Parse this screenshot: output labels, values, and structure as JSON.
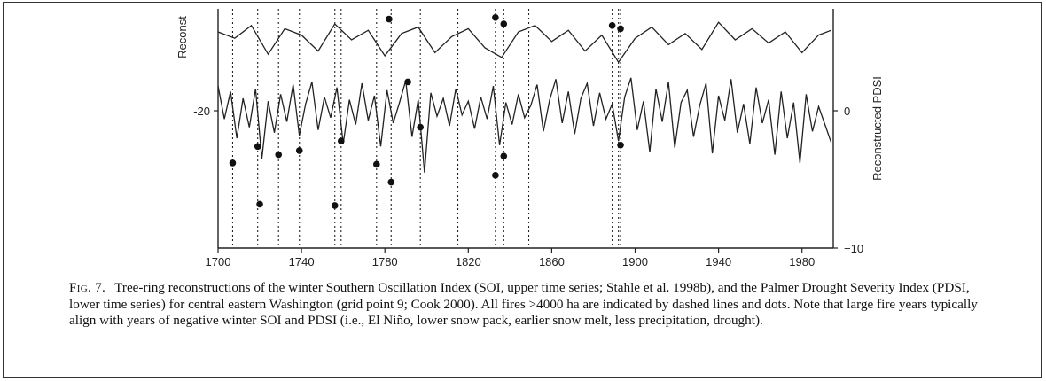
{
  "chart_data": {
    "type": "line",
    "title": "",
    "xlabel": "",
    "y_left_label": "Reconst",
    "y_right_label": "Reconstructed PDSI",
    "xlim": [
      1700,
      1995
    ],
    "x_ticks": [
      1700,
      1740,
      1780,
      1820,
      1860,
      1900,
      1940,
      1980
    ],
    "x_tick_labels": [
      "1700",
      "1740",
      "1780",
      "1820",
      "1860",
      "1900",
      "1940",
      "1980"
    ],
    "y_left_ticks": [
      -20
    ],
    "y_left_tick_labels": [
      "-20"
    ],
    "y_right_ticks": [
      0,
      -10
    ],
    "y_right_tick_labels": [
      "0",
      "−10"
    ],
    "pdsi_ylim": [
      -10,
      4
    ],
    "soi_ylim": [
      -20,
      20
    ],
    "fire_years": [
      1707,
      1719,
      1729,
      1739,
      1756,
      1759,
      1776,
      1783,
      1797,
      1815,
      1833,
      1837,
      1849,
      1889,
      1892,
      1893
    ],
    "series": [
      {
        "name": "",
        "role": "upper",
        "x": [
          1700,
          1708,
          1716,
          1724,
          1732,
          1740,
          1748,
          1756,
          1764,
          1772,
          1780,
          1788,
          1796,
          1804,
          1812,
          1820,
          1828,
          1836,
          1844,
          1852,
          1860,
          1868,
          1876,
          1884,
          1892,
          1900,
          1908,
          1916,
          1924,
          1932,
          1940,
          1948,
          1956,
          1964,
          1972,
          1980,
          1988,
          1994
        ],
        "values": [
          10,
          6,
          14,
          -4,
          12,
          8,
          -2,
          15,
          5,
          11,
          -5,
          9,
          13,
          -3,
          7,
          12,
          0,
          -6,
          10,
          14,
          4,
          11,
          -2,
          8,
          -9,
          6,
          13,
          2,
          9,
          -1,
          16,
          5,
          12,
          3,
          10,
          -3,
          8,
          11
        ]
      },
      {
        "name": "",
        "role": "lower",
        "x": [
          1700,
          1703,
          1706,
          1709,
          1712,
          1715,
          1718,
          1721,
          1724,
          1727,
          1730,
          1733,
          1736,
          1739,
          1742,
          1745,
          1748,
          1751,
          1754,
          1757,
          1760,
          1763,
          1766,
          1769,
          1772,
          1775,
          1778,
          1781,
          1784,
          1787,
          1790,
          1793,
          1796,
          1799,
          1802,
          1805,
          1808,
          1811,
          1814,
          1817,
          1820,
          1823,
          1826,
          1829,
          1832,
          1835,
          1838,
          1841,
          1844,
          1847,
          1850,
          1853,
          1856,
          1859,
          1862,
          1865,
          1868,
          1871,
          1874,
          1877,
          1880,
          1883,
          1886,
          1889,
          1892,
          1895,
          1898,
          1901,
          1904,
          1907,
          1910,
          1913,
          1916,
          1919,
          1922,
          1925,
          1928,
          1931,
          1934,
          1937,
          1940,
          1943,
          1946,
          1949,
          1952,
          1955,
          1958,
          1961,
          1964,
          1967,
          1970,
          1973,
          1976,
          1979,
          1982,
          1985,
          1988,
          1991,
          1994
        ],
        "values": [
          1.8,
          -0.6,
          1.4,
          -2.0,
          0.9,
          -1.2,
          1.6,
          -3.5,
          0.7,
          -1.6,
          1.2,
          -0.8,
          1.9,
          -1.8,
          0.5,
          2.1,
          -1.4,
          1.0,
          -0.5,
          1.7,
          -2.4,
          0.8,
          -1.0,
          2.0,
          -0.7,
          1.1,
          -2.6,
          1.5,
          -0.9,
          0.6,
          2.2,
          -1.9,
          0.8,
          -4.5,
          1.3,
          -0.4,
          0.9,
          -1.1,
          1.6,
          -0.3,
          0.7,
          -1.3,
          1.0,
          -0.6,
          1.8,
          -2.5,
          0.6,
          -1.0,
          1.2,
          -0.5,
          0.4,
          1.9,
          -1.5,
          0.8,
          2.3,
          -0.9,
          1.4,
          -1.7,
          0.9,
          2.0,
          -1.1,
          1.3,
          -0.6,
          0.5,
          -2.2,
          1.0,
          2.4,
          -1.4,
          0.7,
          -3.0,
          1.6,
          -0.8,
          2.1,
          -2.7,
          0.6,
          1.5,
          -1.9,
          0.4,
          2.0,
          -3.1,
          1.1,
          -0.7,
          2.3,
          -1.6,
          0.5,
          -2.4,
          1.7,
          -0.9,
          0.8,
          -3.2,
          1.4,
          -2.0,
          0.6,
          -3.8,
          1.2,
          -1.5,
          0.3,
          -1.0,
          -2.3
        ]
      }
    ],
    "fire_dots": [
      {
        "x": 1707,
        "y": -3.8
      },
      {
        "x": 1719,
        "y": -2.6
      },
      {
        "x": 1720,
        "y": -6.8
      },
      {
        "x": 1729,
        "y": -3.2
      },
      {
        "x": 1739,
        "y": -2.9
      },
      {
        "x": 1756,
        "y": -6.9
      },
      {
        "x": 1759,
        "y": -2.2
      },
      {
        "x": 1776,
        "y": -3.9
      },
      {
        "x": 1783,
        "y": -5.2
      },
      {
        "x": 1797,
        "y": -1.2
      },
      {
        "x": 1791,
        "y": 2.1
      },
      {
        "x": 1833,
        "y": -4.7
      },
      {
        "x": 1837,
        "y": -3.3
      },
      {
        "x": 1893,
        "y": -2.5
      }
    ],
    "soi_dots": [
      {
        "x": 1782,
        "y": 18
      },
      {
        "x": 1833,
        "y": 19
      },
      {
        "x": 1837,
        "y": 15
      },
      {
        "x": 1889,
        "y": 14
      },
      {
        "x": 1893,
        "y": 12
      }
    ],
    "grid": false,
    "legend": "none"
  },
  "caption": {
    "label": "Fig. 7.",
    "text": "Tree-ring reconstructions of the winter Southern Oscillation Index (SOI, upper time series; Stahle et al. 1998b), and the Palmer Drought Severity Index (PDSI, lower time series) for central eastern Washington (grid point 9; Cook 2000). All fires >4000 ha are indicated by dashed lines and dots. Note that large fire years typically align with years of negative winter SOI and PDSI (i.e., El Niño, lower snow pack, earlier snow melt, less precipitation, drought)."
  }
}
